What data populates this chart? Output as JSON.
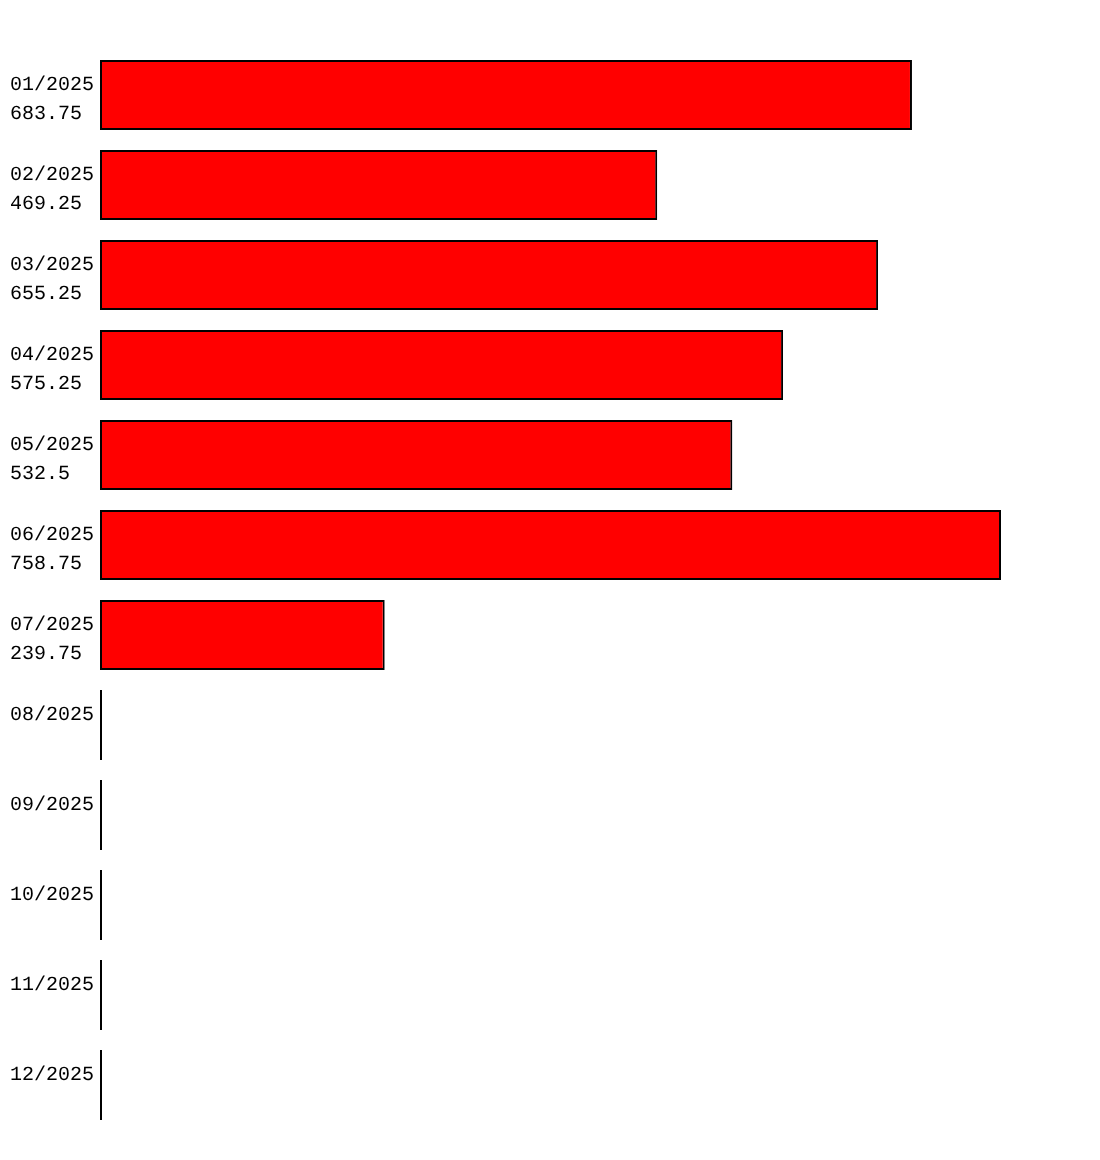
{
  "chart_data": {
    "type": "bar",
    "orientation": "horizontal",
    "categories": [
      "01/2025",
      "02/2025",
      "03/2025",
      "04/2025",
      "05/2025",
      "06/2025",
      "07/2025",
      "08/2025",
      "09/2025",
      "10/2025",
      "11/2025",
      "12/2025"
    ],
    "values": [
      683.75,
      469.25,
      655.25,
      575.25,
      532.5,
      758.75,
      239.75,
      0,
      0,
      0,
      0,
      0
    ],
    "value_labels": [
      "683.75",
      "469.25",
      "655.25",
      "575.25",
      "532.5",
      "758.75",
      "239.75",
      null,
      null,
      null,
      null,
      null
    ],
    "colors": [
      "#ff0000",
      "#ff0000",
      "#ff0000",
      "#ff0000",
      "#ff0000",
      "#ff0000",
      "#ff0000",
      "#000000",
      "#000000",
      "#000000",
      "#000000",
      "#000000"
    ],
    "tick_labels": "y"
  }
}
